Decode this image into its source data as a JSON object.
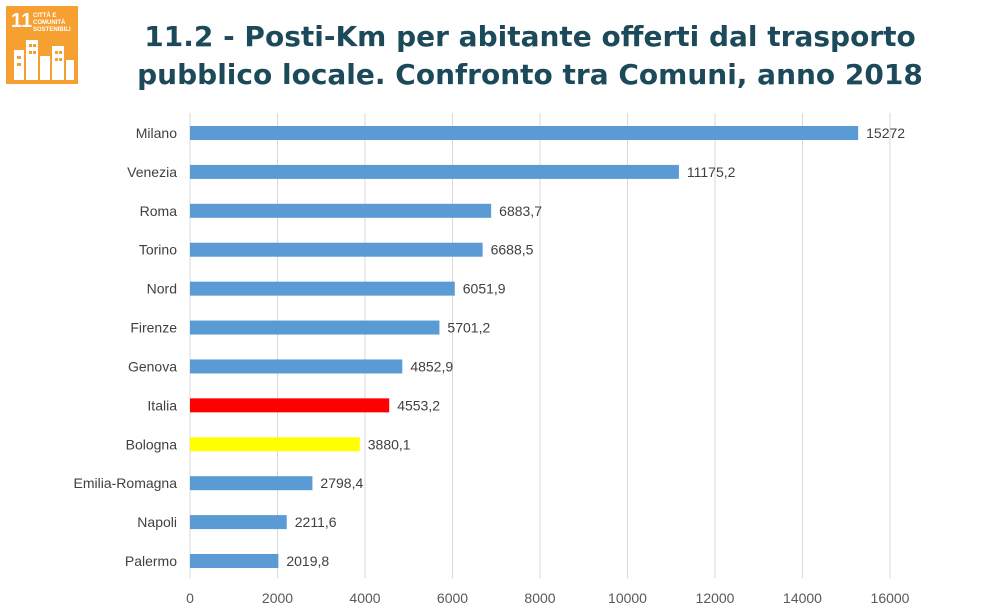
{
  "badge": {
    "number": "11",
    "text": "Città e comunità sostenibili",
    "icon": "city-buildings-icon",
    "color": "#f5a030"
  },
  "title": {
    "line1": "11.2 - Posti-Km per abitante offerti dal trasporto",
    "line2": "pubblico locale. Confronto tra Comuni, anno 2018"
  },
  "chart_data": {
    "type": "bar",
    "orientation": "horizontal",
    "title": "11.2 - Posti-Km per abitante offerti dal trasporto pubblico locale. Confronto tra Comuni, anno 2018",
    "categories": [
      "Milano",
      "Venezia",
      "Roma",
      "Torino",
      "Nord",
      "Firenze",
      "Genova",
      "Italia",
      "Bologna",
      "Emilia-Romagna",
      "Napoli",
      "Palermo"
    ],
    "values": [
      15272,
      11175.2,
      6883.7,
      6688.5,
      6051.9,
      5701.2,
      4852.9,
      4553.2,
      3880.1,
      2798.4,
      2211.6,
      2019.8
    ],
    "value_labels": [
      "15272",
      "11175,2",
      "6883,7",
      "6688,5",
      "6051,9",
      "5701,2",
      "4852,9",
      "4553,2",
      "3880,1",
      "2798,4",
      "2211,6",
      "2019,8"
    ],
    "bar_colors": [
      "#5b9bd5",
      "#5b9bd5",
      "#5b9bd5",
      "#5b9bd5",
      "#5b9bd5",
      "#5b9bd5",
      "#5b9bd5",
      "#ff0000",
      "#ffff00",
      "#5b9bd5",
      "#5b9bd5",
      "#5b9bd5"
    ],
    "xticks": [
      "0",
      "2000",
      "4000",
      "6000",
      "8000",
      "10000",
      "12000",
      "14000",
      "16000"
    ],
    "xlim": [
      0,
      16000
    ],
    "xlabel": "",
    "ylabel": "",
    "grid": "vertical",
    "legend": "none"
  }
}
